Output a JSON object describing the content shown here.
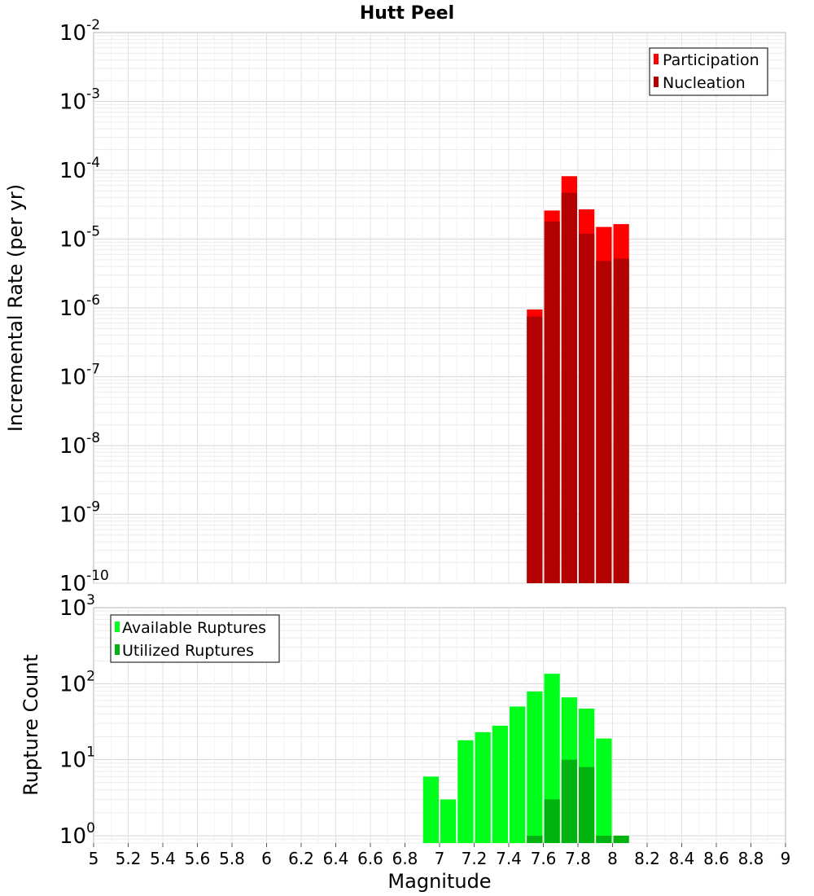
{
  "chart_data": [
    {
      "type": "bar",
      "title": "Hutt Peel",
      "xlabel": "",
      "ylabel": "Incremental Rate (per yr)",
      "yscale": "log",
      "ylim": [
        1e-10,
        0.01
      ],
      "xlim": [
        5,
        9
      ],
      "bar_width": 0.1,
      "legend_placement": "top-right",
      "grid": true,
      "yticks": [
        {
          "base": "10",
          "exp": "-2",
          "value": 0.01
        },
        {
          "base": "10",
          "exp": "-3",
          "value": 0.001
        },
        {
          "base": "10",
          "exp": "-4",
          "value": 0.0001
        },
        {
          "base": "10",
          "exp": "-5",
          "value": 1e-05
        },
        {
          "base": "10",
          "exp": "-6",
          "value": 1e-06
        },
        {
          "base": "10",
          "exp": "-7",
          "value": 1e-07
        },
        {
          "base": "10",
          "exp": "-8",
          "value": 1e-08
        },
        {
          "base": "10",
          "exp": "-9",
          "value": 1e-09
        },
        {
          "base": "10",
          "exp": "-10",
          "value": 1e-10
        }
      ],
      "series": [
        {
          "name": "Participation",
          "color": "#ff0000",
          "x": [
            7.55,
            7.65,
            7.75,
            7.85,
            7.95,
            8.05
          ],
          "values": [
            9.5e-07,
            2.6e-05,
            8.2e-05,
            2.7e-05,
            1.5e-05,
            1.65e-05
          ]
        },
        {
          "name": "Nucleation",
          "color": "#b30000",
          "x": [
            7.55,
            7.65,
            7.75,
            7.85,
            7.95,
            8.05
          ],
          "values": [
            7.5e-07,
            1.8e-05,
            4.7e-05,
            1.2e-05,
            4.8e-06,
            5.2e-06
          ]
        }
      ]
    },
    {
      "type": "bar",
      "xlabel": "Magnitude",
      "ylabel": "Rupture Count",
      "yscale": "log",
      "ylim": [
        0.8,
        1000
      ],
      "xlim": [
        5,
        9
      ],
      "bar_width": 0.1,
      "legend_placement": "top-left",
      "grid": true,
      "xticks": [
        "5",
        "5.2",
        "5.4",
        "5.6",
        "5.8",
        "6",
        "6.2",
        "6.4",
        "6.6",
        "6.8",
        "7",
        "7.2",
        "7.4",
        "7.6",
        "7.8",
        "8",
        "8.2",
        "8.4",
        "8.6",
        "8.8",
        "9"
      ],
      "yticks": [
        {
          "base": "10",
          "exp": "3",
          "value": 1000
        },
        {
          "base": "10",
          "exp": "2",
          "value": 100
        },
        {
          "base": "10",
          "exp": "1",
          "value": 10
        },
        {
          "base": "10",
          "exp": "0",
          "value": 1
        }
      ],
      "series": [
        {
          "name": "Available Ruptures",
          "color": "#00ff1a",
          "x": [
            6.95,
            7.05,
            7.15,
            7.25,
            7.35,
            7.45,
            7.55,
            7.65,
            7.75,
            7.85,
            7.95
          ],
          "values": [
            6,
            3,
            18,
            23,
            28,
            50,
            79,
            135,
            66,
            47,
            19
          ]
        },
        {
          "name": "Utilized Ruptures",
          "color": "#00b30e",
          "x": [
            7.55,
            7.65,
            7.75,
            7.85,
            7.95,
            8.05
          ],
          "values": [
            1,
            3,
            10,
            8,
            1,
            1
          ]
        }
      ]
    }
  ]
}
